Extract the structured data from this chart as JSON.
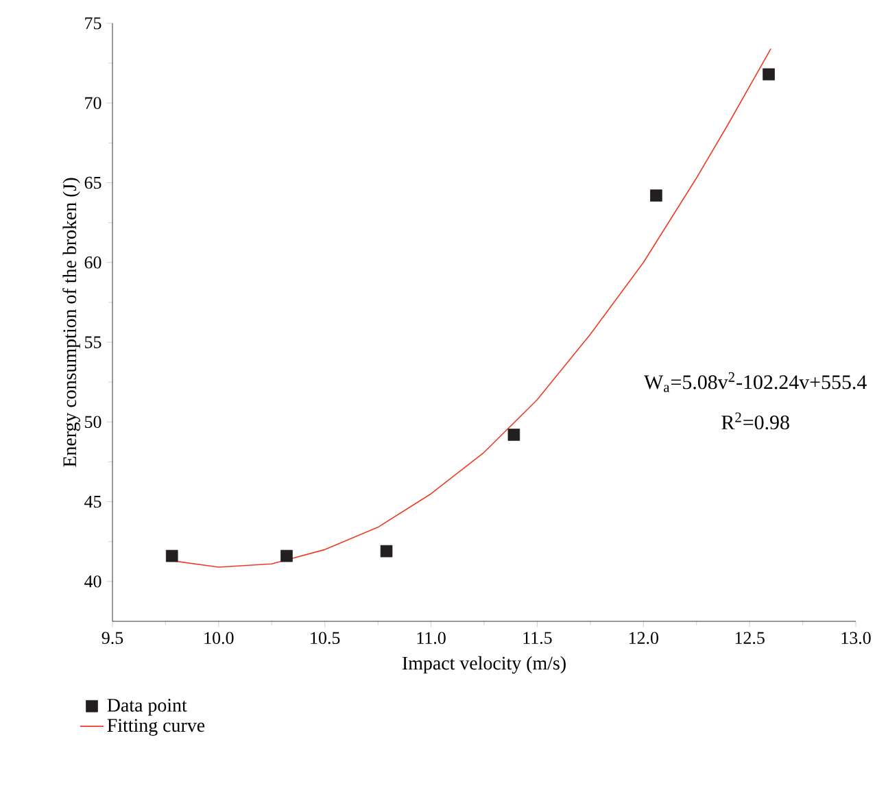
{
  "chart_data": {
    "type": "scatter",
    "xlabel": "Impact velocity (m/s)",
    "ylabel": "Energy consumption of the broken (J)",
    "xlim": [
      9.5,
      13.0
    ],
    "ylim": [
      37.5,
      75
    ],
    "xticks": [
      {
        "value": 9.5,
        "label": "9.5"
      },
      {
        "value": 10.0,
        "label": "10.0"
      },
      {
        "value": 10.5,
        "label": "10.5"
      },
      {
        "value": 11.0,
        "label": "11.0"
      },
      {
        "value": 11.5,
        "label": "11.5"
      },
      {
        "value": 12.0,
        "label": "12.0"
      },
      {
        "value": 12.5,
        "label": "12.5"
      },
      {
        "value": 13.0,
        "label": "13.0"
      }
    ],
    "yticks": [
      40,
      45,
      50,
      55,
      60,
      65,
      70,
      75
    ],
    "legend": "bottom left",
    "grid": false,
    "annotations": [
      "W$_{a}$=5.08v$^{2}$-102.24v+555.4",
      "R$^{2}$=0.98"
    ],
    "series": [
      {
        "name": "Data point",
        "marker": "square",
        "color": "#231f20",
        "x": [
          9.78,
          10.32,
          10.79,
          11.39,
          12.06,
          12.59
        ],
        "values": [
          41.6,
          41.6,
          41.9,
          49.2,
          64.2,
          71.8
        ]
      },
      {
        "name": "Fitting curve",
        "type": "line",
        "marker": "none",
        "line_style": "solid",
        "color": "#ee3b24",
        "x": [
          9.78,
          10.0,
          10.25,
          10.5,
          10.75,
          11.0,
          11.25,
          11.5,
          11.75,
          12.0,
          12.25,
          12.4,
          12.6
        ],
        "values": [
          41.3,
          40.9,
          41.1,
          42.0,
          43.4,
          45.5,
          48.1,
          51.4,
          55.5,
          60.0,
          65.3,
          68.7,
          73.4
        ]
      }
    ]
  }
}
